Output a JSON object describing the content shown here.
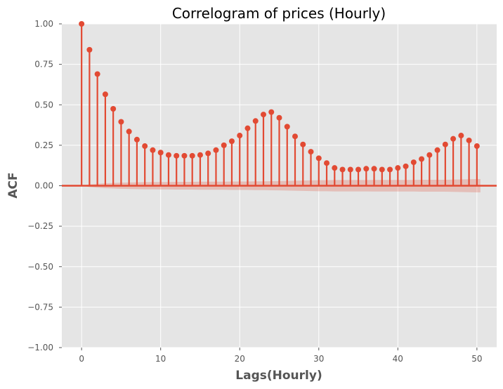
{
  "chart_data": {
    "type": "stem",
    "title": "Correlogram of prices (Hourly)",
    "xlabel": "Lags(Hourly)",
    "ylabel": "ACF",
    "xlim": [
      -2.5,
      52.5
    ],
    "ylim": [
      -1.0,
      1.0
    ],
    "x_ticks": [
      0,
      10,
      20,
      30,
      40,
      50
    ],
    "x_tick_labels": [
      "0",
      "10",
      "20",
      "30",
      "40",
      "50"
    ],
    "y_ticks": [
      -1.0,
      -0.75,
      -0.5,
      -0.25,
      0.0,
      0.25,
      0.5,
      0.75,
      1.0
    ],
    "y_tick_labels": [
      "−1.00",
      "−0.75",
      "−0.50",
      "−0.25",
      "0.00",
      "0.25",
      "0.50",
      "0.75",
      "1.00"
    ],
    "grid": true,
    "colors": {
      "marker": "#E24A33",
      "background": "#E5E5E5",
      "grid": "#FFFFFF",
      "band": "#E24A33"
    },
    "x": [
      0,
      1,
      2,
      3,
      4,
      5,
      6,
      7,
      8,
      9,
      10,
      11,
      12,
      13,
      14,
      15,
      16,
      17,
      18,
      19,
      20,
      21,
      22,
      23,
      24,
      25,
      26,
      27,
      28,
      29,
      30,
      31,
      32,
      33,
      34,
      35,
      36,
      37,
      38,
      39,
      40,
      41,
      42,
      43,
      44,
      45,
      46,
      47,
      48,
      49,
      50
    ],
    "values": [
      1.0,
      0.84,
      0.69,
      0.565,
      0.475,
      0.395,
      0.335,
      0.285,
      0.245,
      0.22,
      0.205,
      0.19,
      0.185,
      0.185,
      0.185,
      0.19,
      0.2,
      0.22,
      0.25,
      0.275,
      0.31,
      0.355,
      0.4,
      0.44,
      0.455,
      0.42,
      0.365,
      0.305,
      0.255,
      0.21,
      0.17,
      0.14,
      0.11,
      0.1,
      0.1,
      0.1,
      0.105,
      0.105,
      0.1,
      0.1,
      0.11,
      0.12,
      0.145,
      0.165,
      0.19,
      0.22,
      0.255,
      0.29,
      0.31,
      0.28,
      0.245
    ],
    "confint_upper": [
      0.0,
      0.008,
      0.012,
      0.015,
      0.017,
      0.019,
      0.02,
      0.021,
      0.022,
      0.022,
      0.023,
      0.023,
      0.024,
      0.024,
      0.024,
      0.025,
      0.025,
      0.025,
      0.025,
      0.026,
      0.026,
      0.026,
      0.027,
      0.027,
      0.028,
      0.029,
      0.03,
      0.031,
      0.032,
      0.033,
      0.034,
      0.034,
      0.035,
      0.035,
      0.035,
      0.035,
      0.035,
      0.036,
      0.036,
      0.036,
      0.036,
      0.036,
      0.036,
      0.037,
      0.037,
      0.037,
      0.037,
      0.038,
      0.039,
      0.04,
      0.041
    ]
  }
}
